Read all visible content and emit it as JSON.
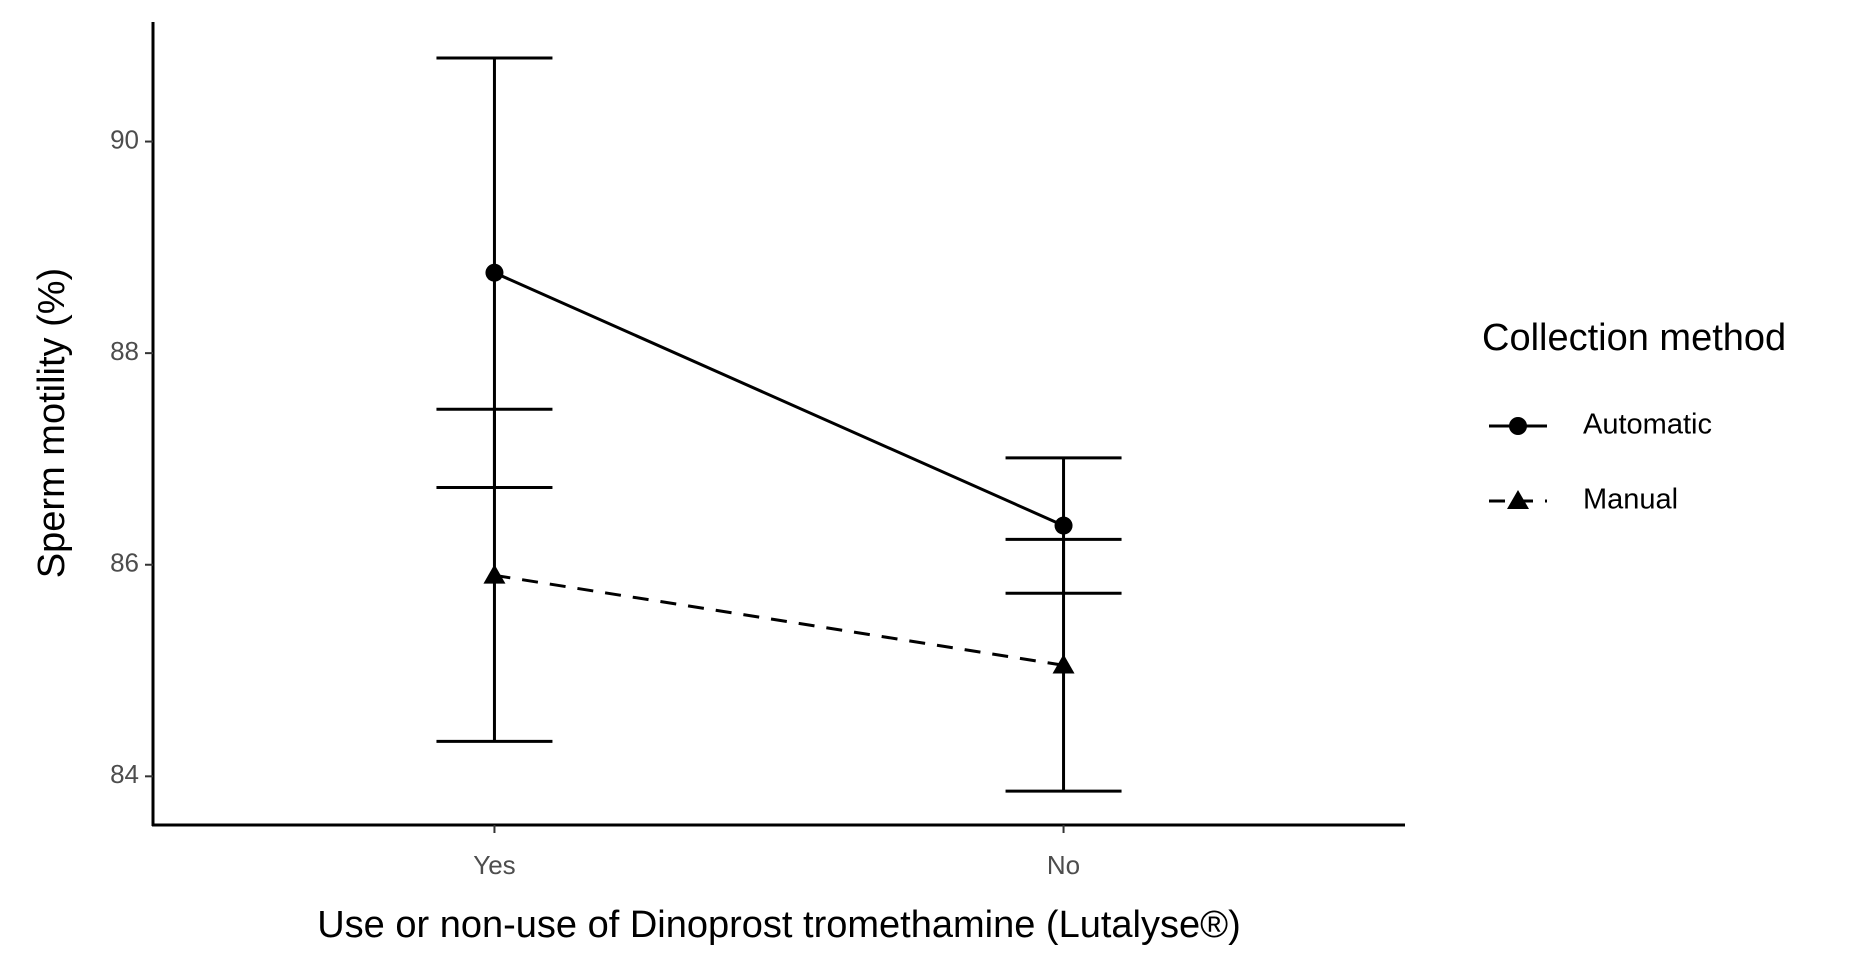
{
  "chart_data": {
    "type": "line",
    "x_label": "Use or non-use of Dinoprost tromethamine (Lutalyse®)",
    "y_label": "Sperm motility (%)",
    "categories": [
      "Yes",
      "No"
    ],
    "series": [
      {
        "name": "Automatic",
        "color": "#000000",
        "marker": "circle",
        "dashed": false,
        "values": [
          88.76,
          86.37
        ],
        "errors": [
          2.03,
          0.64
        ]
      },
      {
        "name": "Manual",
        "color": "#000000",
        "marker": "triangle",
        "dashed": true,
        "values": [
          85.9,
          85.05
        ],
        "errors": [
          1.57,
          1.19
        ]
      }
    ],
    "ylim": [
      83.54,
      91.13
    ],
    "yticks": [
      84,
      86,
      88,
      90
    ],
    "grid": false,
    "legend_title": "Collection method",
    "legend_position": "right"
  }
}
